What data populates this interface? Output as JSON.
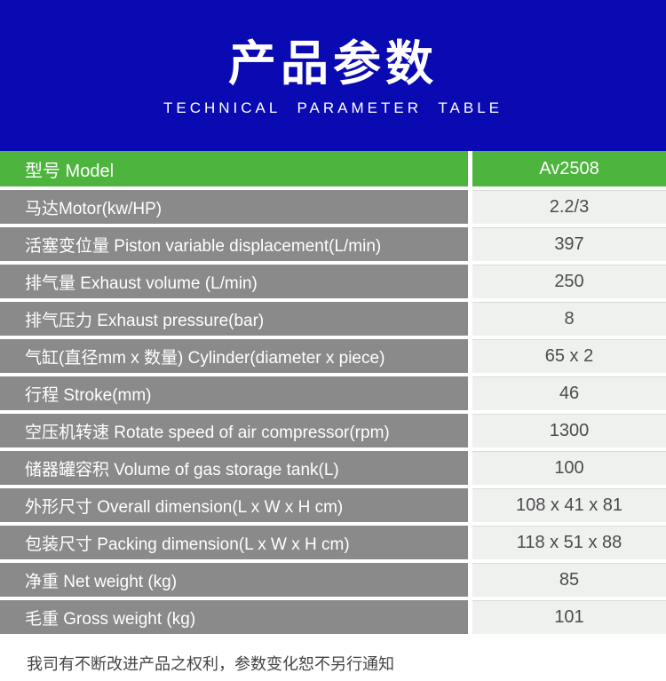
{
  "header": {
    "title": "产品参数",
    "subtitle": "TECHNICAL PARAMETER TABLE"
  },
  "table": {
    "rows": [
      {
        "label": "型号 Model",
        "value": "Av2508"
      },
      {
        "label": "马达Motor(kw/HP)",
        "value": "2.2/3"
      },
      {
        "label": "活塞变位量 Piston variable displacement(L/min)",
        "value": "397"
      },
      {
        "label": "排气量 Exhaust volume (L/min)",
        "value": "250"
      },
      {
        "label": "排气压力 Exhaust pressure(bar)",
        "value": "8"
      },
      {
        "label": "气缸(直径mm x 数量) Cylinder(diameter x piece)",
        "value": "65 x 2"
      },
      {
        "label": "行程 Stroke(mm)",
        "value": "46"
      },
      {
        "label": "空压机转速 Rotate speed of air compressor(rpm)",
        "value": "1300"
      },
      {
        "label": "储器罐容积 Volume of gas storage tank(L)",
        "value": "100"
      },
      {
        "label": "外形尺寸 Overall dimension(L x W x H cm)",
        "value": "108 x 41 x 81"
      },
      {
        "label": "包装尺寸 Packing dimension(L x W x H cm)",
        "value": "118 x 51 x 88"
      },
      {
        "label": "净重 Net weight (kg)",
        "value": "85"
      },
      {
        "label": "毛重 Gross weight (kg)",
        "value": "101"
      }
    ]
  },
  "footer": {
    "note": "我司有不断改进产品之权利，参数变化恕不另行通知"
  },
  "colors": {
    "header_blue": "#0a0ab2",
    "model_green": "#4db43d",
    "label_gray": "#8a8a8a",
    "value_light": "#eff1ef",
    "value_text": "#4c4c4c"
  }
}
